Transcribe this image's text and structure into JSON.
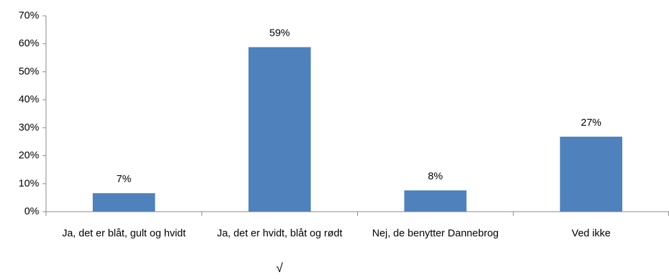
{
  "chart_data": {
    "type": "bar",
    "categories": [
      "Ja, det er blåt, gult og hvidt",
      "Ja, det er hvidt, blåt og rødt",
      "Nej, de benytter Dannebrog",
      "Ved ikke"
    ],
    "values": [
      6.6,
      58.8,
      7.6,
      26.8
    ],
    "value_labels": [
      "7%",
      "59%",
      "8%",
      "27%"
    ],
    "color": "#4f81bd",
    "ylim": [
      0,
      70
    ],
    "yticks": [
      {
        "value": 0,
        "label": "0%"
      },
      {
        "value": 10,
        "label": "10%"
      },
      {
        "value": 20,
        "label": "20%"
      },
      {
        "value": 30,
        "label": "30%"
      },
      {
        "value": 40,
        "label": "40%"
      },
      {
        "value": 50,
        "label": "50%"
      },
      {
        "value": 60,
        "label": "60%"
      },
      {
        "value": 70,
        "label": "70%"
      }
    ],
    "grid": false,
    "annotation": "√"
  }
}
